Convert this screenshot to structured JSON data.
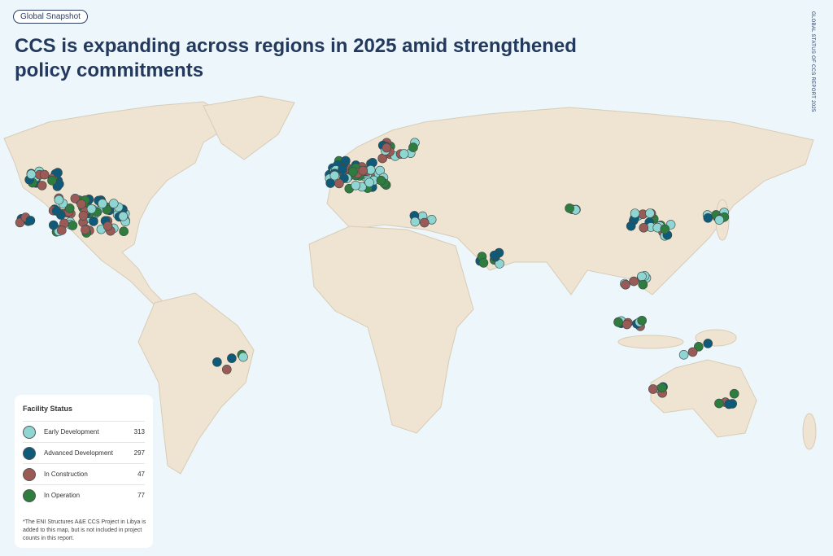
{
  "badge": "Global Snapshot",
  "title": "CCS is expanding across regions in 2025 amid strengthened policy commitments",
  "side_label": "GLOBAL STATUS OF CCS REPORT 2025",
  "legend": {
    "title": "Facility Status",
    "items": [
      {
        "label": "Early Development",
        "count": "313",
        "color": "#8fd6d2"
      },
      {
        "label": "Advanced Development",
        "count": "297",
        "color": "#0f5a78"
      },
      {
        "label": "In Construction",
        "count": "47",
        "color": "#9a5a55"
      },
      {
        "label": "In Operation",
        "count": "77",
        "color": "#2e7d3e"
      }
    ]
  },
  "footnote": "*The ENI Structures A&E CCS Project in Libya is added to this map, but is not included in project counts in this report."
}
